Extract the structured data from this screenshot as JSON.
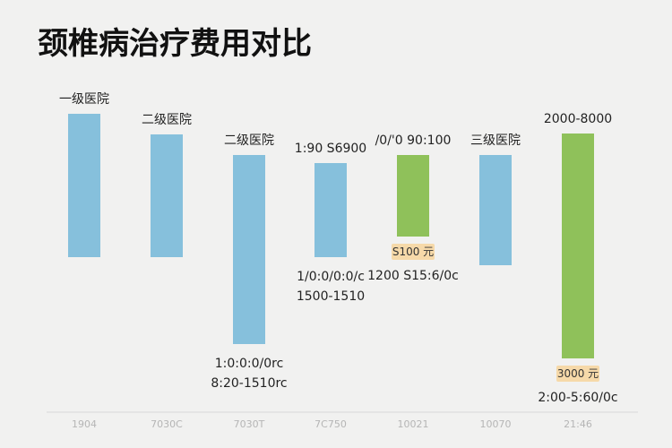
{
  "chart_data": {
    "type": "bar",
    "title": "颈椎病治疗费用对比",
    "xlabel": "",
    "ylabel": "",
    "ylim_note": "floating ranges, values in relative units read from bar extents",
    "grid": false,
    "legend": "none",
    "colors": {
      "blue": "#86c0dc",
      "green": "#8fc15a",
      "badge": "#f6d9a9",
      "axis": "#d8d8d8",
      "title": "#111111"
    },
    "categories": [
      "1904",
      "7030C",
      "7030T",
      "7C750",
      "10021",
      "10070",
      "21:46"
    ],
    "bars": [
      {
        "color": "blue",
        "low": 0.0,
        "high": 1.6,
        "top_label": "一级医院",
        "bottom_labels": [],
        "badge": ""
      },
      {
        "color": "blue",
        "low": 0.0,
        "high": 1.37,
        "top_label": "二级医院",
        "bottom_labels": [],
        "badge": ""
      },
      {
        "color": "blue",
        "low": -0.97,
        "high": 1.14,
        "top_label": "二级医院",
        "bottom_labels": [
          "1:0:0:0/0rc",
          "8:20-1510rc"
        ],
        "badge": ""
      },
      {
        "color": "blue",
        "low": 0.0,
        "high": 1.05,
        "top_label": "1:90 S6900",
        "bottom_labels": [
          "1/0:0/0:0/c",
          "1500-1510"
        ],
        "badge": ""
      },
      {
        "color": "green",
        "low": 0.23,
        "high": 1.14,
        "top_label": "/0/'0 90:100",
        "bottom_labels": [
          "1200 S15:6/0c"
        ],
        "badge": "S100 元"
      },
      {
        "color": "blue",
        "low": -0.09,
        "high": 1.14,
        "top_label": "三级医院",
        "bottom_labels": [],
        "badge": ""
      },
      {
        "color": "green",
        "low": -1.13,
        "high": 1.38,
        "top_label": "2000-8000",
        "bottom_labels": [
          "2:00-5:60/0c"
        ],
        "badge": "3000 元"
      }
    ]
  }
}
